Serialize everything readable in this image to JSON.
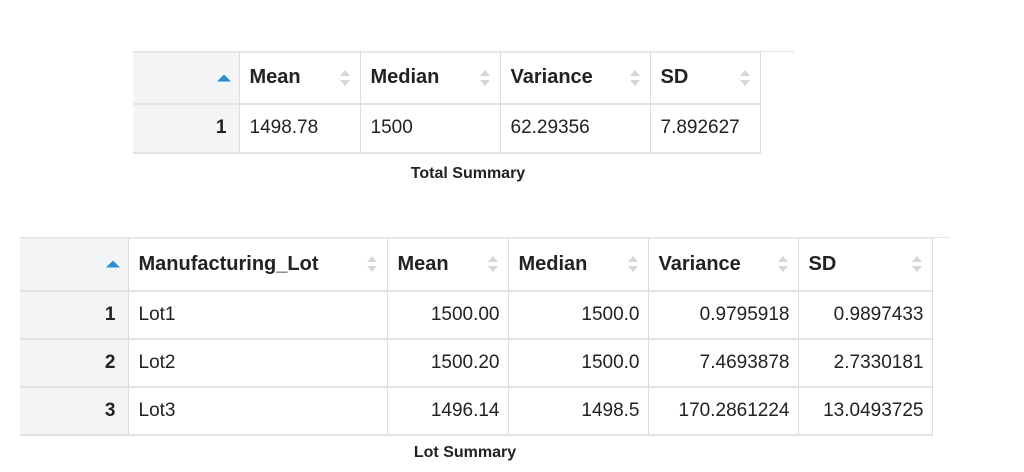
{
  "total_summary": {
    "caption": "Total Summary",
    "columns": [
      "Mean",
      "Median",
      "Variance",
      "SD"
    ],
    "rows": [
      {
        "index": "1",
        "mean": "1498.78",
        "median": "1500",
        "variance": "62.29356",
        "sd": "7.892627"
      }
    ]
  },
  "lot_summary": {
    "caption": "Lot Summary",
    "columns": [
      "Manufacturing_Lot",
      "Mean",
      "Median",
      "Variance",
      "SD"
    ],
    "rows": [
      {
        "index": "1",
        "lot": "Lot1",
        "mean": "1500.00",
        "median": "1500.0",
        "variance": "0.9795918",
        "sd": "0.9897433"
      },
      {
        "index": "2",
        "lot": "Lot2",
        "mean": "1500.20",
        "median": "1500.0",
        "variance": "7.4693878",
        "sd": "2.7330181"
      },
      {
        "index": "3",
        "lot": "Lot3",
        "mean": "1496.14",
        "median": "1498.5",
        "variance": "170.2861224",
        "sd": "13.0493725"
      }
    ]
  },
  "colors": {
    "sort_active": "#2a8fd6",
    "sort_inactive": "#d6d6d6",
    "row_header_bg": "#f2f4f6"
  }
}
